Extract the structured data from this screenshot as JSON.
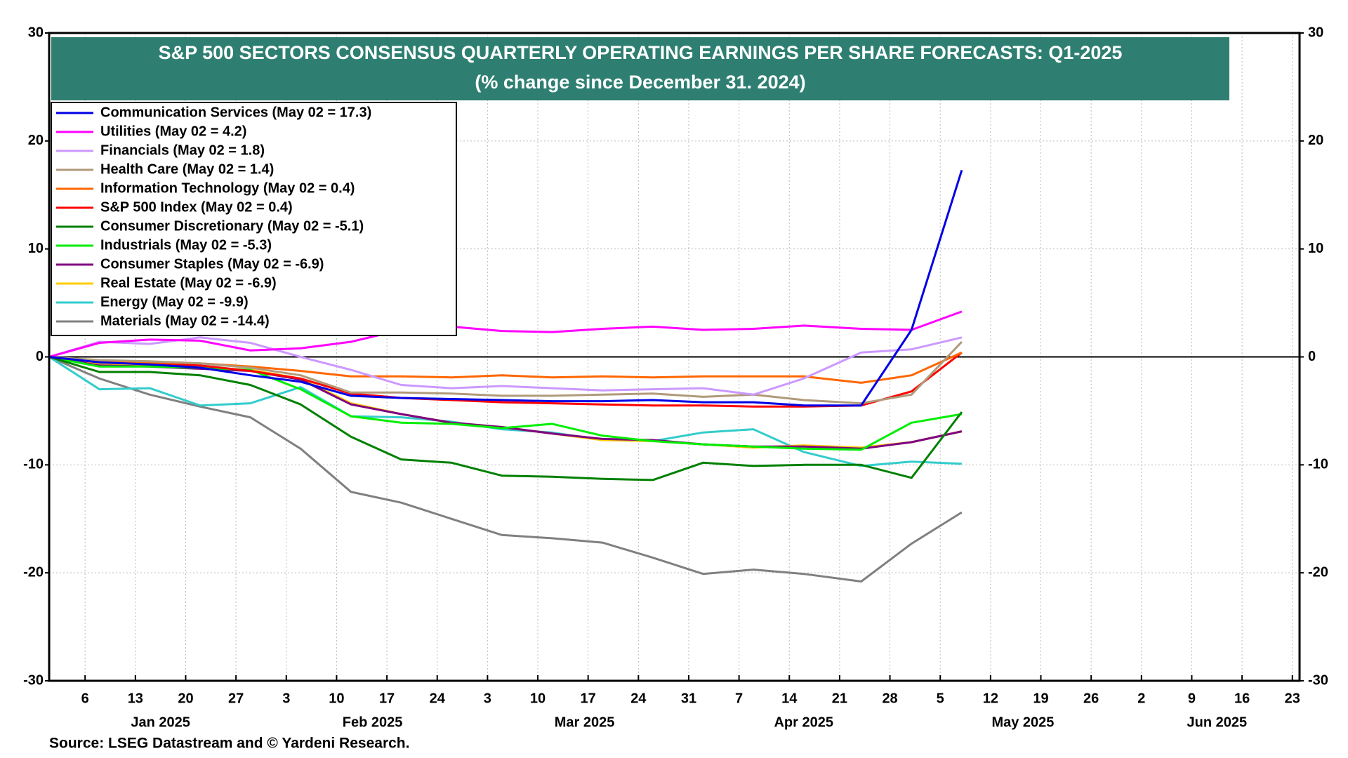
{
  "chart_data": {
    "type": "line",
    "title": "S&P 500 SECTORS CONSENSUS QUARTERLY OPERATING EARNINGS PER SHARE FORECASTS: Q1-2025",
    "subtitle": "(% change since December 31. 2024)",
    "source": "Source: LSEG Datastream and © Yardeni Research.",
    "x": [
      "2025-01-01",
      "2025-01-08",
      "2025-01-15",
      "2025-01-22",
      "2025-01-29",
      "2025-02-05",
      "2025-02-12",
      "2025-02-19",
      "2025-02-26",
      "2025-03-05",
      "2025-03-12",
      "2025-03-19",
      "2025-03-26",
      "2025-04-02",
      "2025-04-09",
      "2025-04-16",
      "2025-04-24",
      "2025-05-01",
      "2025-05-08"
    ],
    "xlim": [
      "2025-01-01",
      "2025-06-24"
    ],
    "xticks": [
      {
        "value": "2025-01-06",
        "label": "6"
      },
      {
        "value": "2025-01-13",
        "label": "13"
      },
      {
        "value": "2025-01-20",
        "label": "20"
      },
      {
        "value": "2025-01-27",
        "label": "27"
      },
      {
        "value": "2025-02-03",
        "label": "3"
      },
      {
        "value": "2025-02-10",
        "label": "10"
      },
      {
        "value": "2025-02-17",
        "label": "17"
      },
      {
        "value": "2025-02-24",
        "label": "24"
      },
      {
        "value": "2025-03-03",
        "label": "3"
      },
      {
        "value": "2025-03-10",
        "label": "10"
      },
      {
        "value": "2025-03-17",
        "label": "17"
      },
      {
        "value": "2025-03-24",
        "label": "24"
      },
      {
        "value": "2025-03-31",
        "label": "31"
      },
      {
        "value": "2025-04-07",
        "label": "7"
      },
      {
        "value": "2025-04-14",
        "label": "14"
      },
      {
        "value": "2025-04-21",
        "label": "21"
      },
      {
        "value": "2025-04-28",
        "label": "28"
      },
      {
        "value": "2025-05-05",
        "label": "5"
      },
      {
        "value": "2025-05-12",
        "label": "12"
      },
      {
        "value": "2025-05-19",
        "label": "19"
      },
      {
        "value": "2025-05-26",
        "label": "26"
      },
      {
        "value": "2025-06-02",
        "label": "2"
      },
      {
        "value": "2025-06-09",
        "label": "9"
      },
      {
        "value": "2025-06-16",
        "label": "16"
      },
      {
        "value": "2025-06-23",
        "label": "23"
      }
    ],
    "x_month_labels": [
      "Jan 2025",
      "Feb 2025",
      "Mar 2025",
      "Apr 2025",
      "May 2025",
      "Jun 2025"
    ],
    "ylim": [
      -30,
      30
    ],
    "yticks": [
      -30,
      -20,
      -10,
      0,
      10,
      20,
      30
    ],
    "grid": true,
    "legend": "upper left",
    "series": [
      {
        "name": "Communication Services (May 02 = 17.3)",
        "color": "#0000e6",
        "values": [
          0,
          -0.5,
          -0.7,
          -1.0,
          -1.7,
          -2.3,
          -3.6,
          -3.8,
          -3.9,
          -4.0,
          -4.1,
          -4.1,
          -4.0,
          -4.2,
          -4.2,
          -4.5,
          -4.5,
          2.5,
          17.3
        ]
      },
      {
        "name": "Utilities (May 02 = 4.2)",
        "color": "#ff00ff",
        "values": [
          0,
          1.3,
          1.6,
          1.5,
          0.6,
          0.8,
          1.4,
          2.5,
          2.8,
          2.4,
          2.3,
          2.6,
          2.8,
          2.5,
          2.6,
          2.9,
          2.6,
          2.5,
          4.2
        ]
      },
      {
        "name": "Financials (May 02 = 1.8)",
        "color": "#cc99ff",
        "values": [
          0,
          1.4,
          1.2,
          1.8,
          1.3,
          0.0,
          -1.2,
          -2.6,
          -2.9,
          -2.7,
          -2.9,
          -3.1,
          -3.0,
          -2.9,
          -3.5,
          -2.0,
          0.4,
          0.7,
          1.8
        ]
      },
      {
        "name": "Health Care (May 02 = 1.4)",
        "color": "#b09a7a",
        "values": [
          0,
          -0.3,
          -0.4,
          -0.6,
          -1.0,
          -1.7,
          -3.3,
          -3.3,
          -3.4,
          -3.6,
          -3.6,
          -3.5,
          -3.4,
          -3.7,
          -3.5,
          -4.0,
          -4.3,
          -3.5,
          1.4
        ]
      },
      {
        "name": "Information Technology (May 02 = 0.4)",
        "color": "#ff6600",
        "values": [
          0,
          -0.4,
          -0.5,
          -0.6,
          -0.9,
          -1.3,
          -1.8,
          -1.8,
          -1.9,
          -1.7,
          -1.9,
          -1.8,
          -1.9,
          -1.8,
          -1.8,
          -1.8,
          -2.4,
          -1.7,
          0.4
        ]
      },
      {
        "name": "S&P 500 Index (May 02 = 0.4)",
        "color": "#ff0000",
        "values": [
          0,
          -0.5,
          -0.6,
          -0.8,
          -1.3,
          -2.0,
          -3.4,
          -3.8,
          -4.0,
          -4.2,
          -4.3,
          -4.4,
          -4.5,
          -4.5,
          -4.6,
          -4.6,
          -4.5,
          -3.2,
          0.4
        ]
      },
      {
        "name": "Consumer Discretionary (May 02 = -5.1)",
        "color": "#008000",
        "values": [
          0,
          -1.4,
          -1.4,
          -1.7,
          -2.6,
          -4.4,
          -7.4,
          -9.5,
          -9.8,
          -11.0,
          -11.1,
          -11.3,
          -11.4,
          -9.8,
          -10.1,
          -10.0,
          -10.0,
          -11.2,
          -5.1
        ]
      },
      {
        "name": "Industrials (May 02 = -5.3)",
        "color": "#00ee00",
        "values": [
          0,
          -0.9,
          -0.9,
          -1.0,
          -1.2,
          -3.0,
          -5.5,
          -6.1,
          -6.2,
          -6.6,
          -6.2,
          -7.3,
          -7.8,
          -8.1,
          -8.3,
          -8.5,
          -8.6,
          -6.1,
          -5.3
        ]
      },
      {
        "name": "Consumer Staples (May 02 = -6.9)",
        "color": "#800080",
        "values": [
          0,
          -0.8,
          -0.9,
          -1.1,
          -1.3,
          -2.1,
          -4.4,
          -5.3,
          -6.1,
          -6.5,
          -7.1,
          -7.6,
          -7.7,
          -8.1,
          -8.3,
          -8.3,
          -8.5,
          -7.9,
          -6.9
        ]
      },
      {
        "name": "Real Estate (May 02 = -6.9)",
        "color": "#ffcc00",
        "values": [
          0,
          -0.7,
          -0.8,
          -1.0,
          -1.2,
          -2.0,
          -4.3,
          -5.3,
          -6.1,
          -6.5,
          -7.1,
          -7.7,
          -7.8,
          -8.1,
          -8.4,
          -8.2,
          -8.4,
          -7.9,
          -6.9
        ]
      },
      {
        "name": "Energy (May 02 = -9.9)",
        "color": "#33cccc",
        "values": [
          0,
          -3.0,
          -2.9,
          -4.5,
          -4.3,
          -2.8,
          -5.5,
          -5.6,
          -6.0,
          -6.7,
          -7.0,
          -7.7,
          -7.8,
          -7.0,
          -6.7,
          -8.8,
          -10.1,
          -9.7,
          -9.9
        ]
      },
      {
        "name": "Materials (May 02 = -14.4)",
        "color": "#808080",
        "values": [
          0,
          -2.0,
          -3.5,
          -4.6,
          -5.6,
          -8.5,
          -12.5,
          -13.5,
          -15.0,
          -16.5,
          -16.8,
          -17.2,
          -18.6,
          -20.1,
          -19.7,
          -20.1,
          -20.8,
          -17.3,
          -14.4
        ]
      }
    ]
  }
}
